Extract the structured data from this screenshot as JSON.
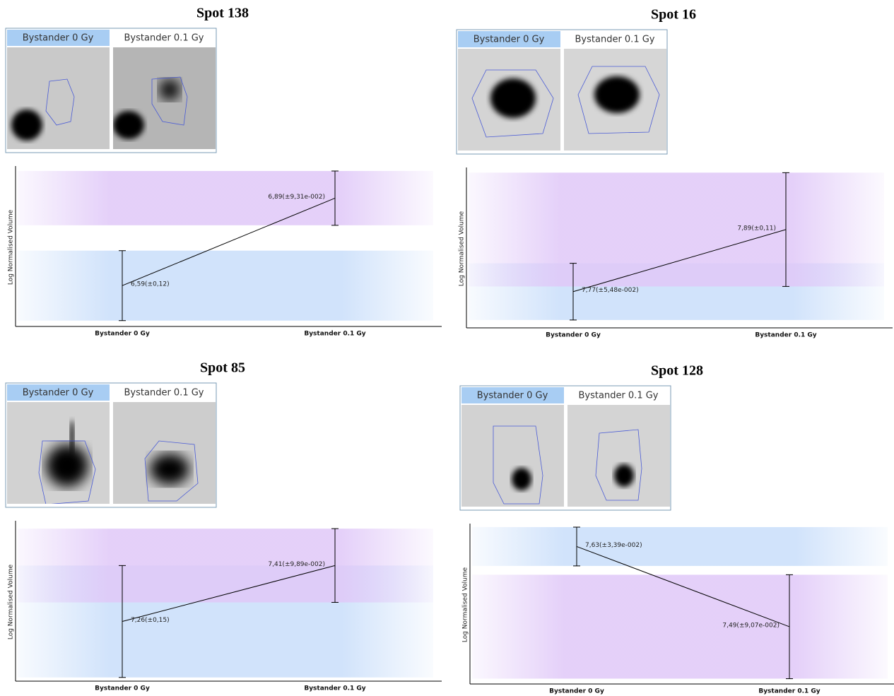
{
  "chart_data": [
    {
      "type": "line",
      "title": "Spot 138",
      "y_label": "Log Normalised Volume",
      "categories": [
        "Bystander 0 Gy",
        "Bystander 0.1 Gy"
      ],
      "values": [
        6.59,
        6.89
      ],
      "errors": [
        0.12,
        0.0931
      ],
      "value_labels": [
        "6,59(±0,12)",
        "6,89(±9,31e-002)"
      ],
      "color": "#000000",
      "band_colors": [
        "#c9defa",
        "#e0c8f8"
      ],
      "ylim": [
        6.45,
        7.0
      ]
    },
    {
      "type": "line",
      "title": "Spot 16",
      "y_label": "Log Normalised Volume",
      "categories": [
        "Bystander 0 Gy",
        "Bystander 0.1 Gy"
      ],
      "values": [
        7.77,
        7.89
      ],
      "errors": [
        0.0548,
        0.11
      ],
      "value_labels": [
        "7,77(±5,48e-002)",
        "7,89(±0,11)"
      ],
      "color": "#000000",
      "band_colors": [
        "#c9defa",
        "#e0c8f8"
      ],
      "ylim": [
        7.7,
        8.01
      ]
    },
    {
      "type": "line",
      "title": "Spot 85",
      "y_label": "Log Normalised Volume",
      "categories": [
        "Bystander 0 Gy",
        "Bystander 0.1 Gy"
      ],
      "values": [
        7.26,
        7.41
      ],
      "errors": [
        0.15,
        0.0989
      ],
      "value_labels": [
        "7,26(±0,15)",
        "7,41(±9,89e-002)"
      ],
      "color": "#000000",
      "band_colors": [
        "#c9defa",
        "#e0c8f8"
      ],
      "ylim": [
        7.1,
        7.53
      ]
    },
    {
      "type": "line",
      "title": "Spot 128",
      "y_label": "Log Normalised Volume",
      "categories": [
        "Bystander 0 Gy",
        "Bystander 0.1 Gy"
      ],
      "values": [
        7.63,
        7.49
      ],
      "errors": [
        0.0339,
        0.0907
      ],
      "value_labels": [
        "7,63(±3,39e-002)",
        "7,49(±9,07e-002)"
      ],
      "color": "#000000",
      "band_colors": [
        "#c9defa",
        "#e0c8f8"
      ],
      "ylim": [
        7.39,
        7.67
      ]
    }
  ]
}
